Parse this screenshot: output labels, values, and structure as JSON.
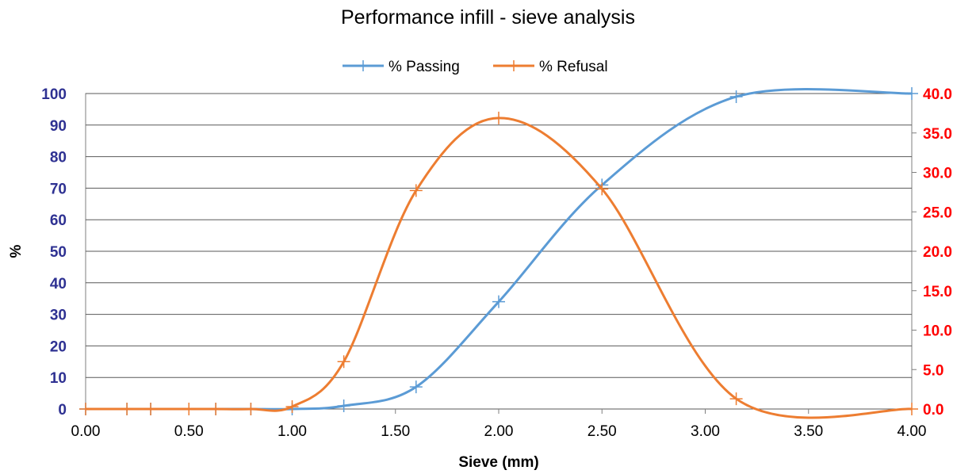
{
  "chart_data": {
    "type": "line",
    "title": "Performance infill  - sieve analysis",
    "xlabel": "Sieve (mm)",
    "ylabel": "%",
    "xlim": [
      0,
      4
    ],
    "ylim_left": [
      0,
      100
    ],
    "ylim_right": [
      0,
      40
    ],
    "x_ticks": [
      "0.00",
      "0.50",
      "1.00",
      "1.50",
      "2.00",
      "2.50",
      "3.00",
      "3.50",
      "4.00"
    ],
    "y_left_ticks": [
      "0",
      "10",
      "20",
      "30",
      "40",
      "50",
      "60",
      "70",
      "80",
      "90",
      "100"
    ],
    "y_right_ticks": [
      "0.0",
      "5.0",
      "10.0",
      "15.0",
      "20.0",
      "25.0",
      "30.0",
      "35.0",
      "40.0"
    ],
    "grid": "horizontal",
    "legend_position": "top",
    "series": [
      {
        "name": "% Passing",
        "axis": "left",
        "color": "#5b9bd5",
        "x": [
          0,
          0.2,
          0.315,
          0.5,
          0.63,
          0.8,
          1.0,
          1.25,
          1.6,
          2.0,
          2.5,
          3.15,
          4.0
        ],
        "values": [
          0,
          0,
          0,
          0,
          0,
          0,
          0,
          1,
          7,
          34,
          71,
          99,
          100
        ]
      },
      {
        "name": "% Refusal",
        "axis": "right",
        "color": "#ed7d31",
        "x": [
          0,
          0.2,
          0.315,
          0.5,
          0.63,
          0.8,
          1.0,
          1.25,
          1.6,
          2.0,
          2.5,
          3.15,
          4.0
        ],
        "values": [
          0,
          0,
          0,
          0,
          0,
          0,
          0.3,
          6,
          27.7,
          36.9,
          27.9,
          1.3,
          0
        ]
      }
    ]
  }
}
